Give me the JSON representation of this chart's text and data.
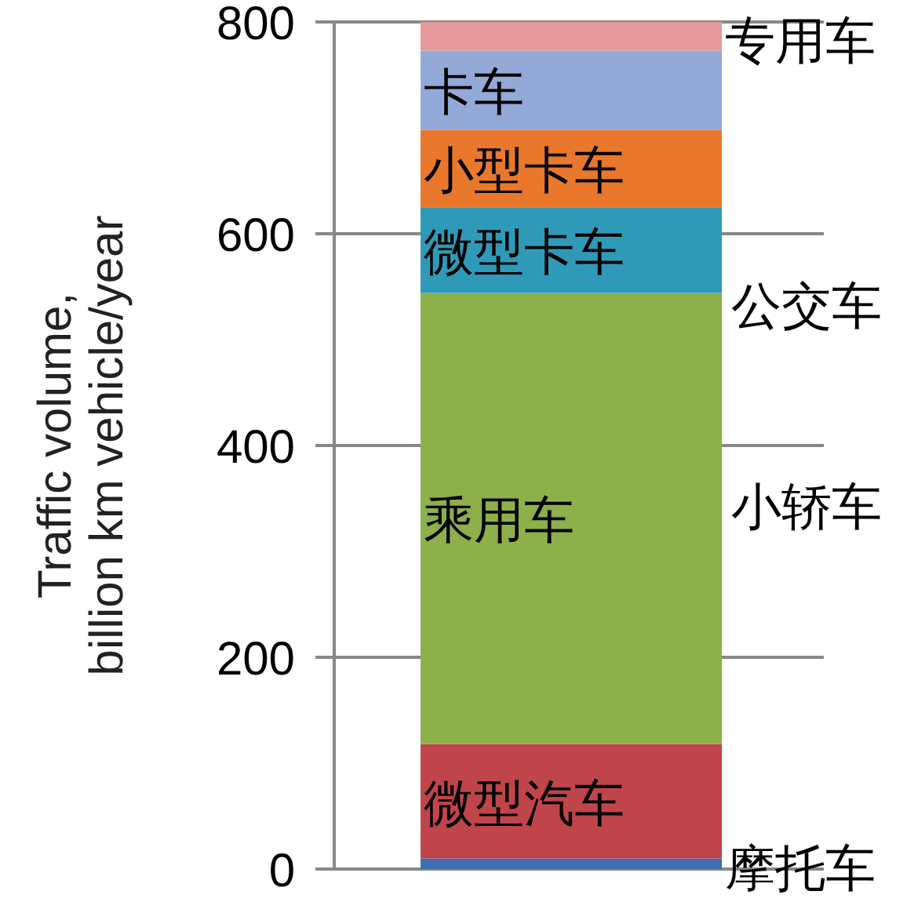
{
  "chart_data": {
    "type": "bar",
    "stacked": true,
    "ylabel": "Traffic volume,\nbillion km vehicle/year",
    "categories": [
      null
    ],
    "ylim": [
      0,
      800
    ],
    "yticks": [
      0,
      200,
      400,
      600,
      800
    ],
    "grid": "y",
    "series": [
      {
        "name": "摩托车",
        "color": "#3f6fae",
        "values": [
          10
        ]
      },
      {
        "name": "微型汽车",
        "color": "#c0454a",
        "values": [
          108
        ]
      },
      {
        "name": "乘用车",
        "color": "#8db04a",
        "values": [
          426
        ]
      },
      {
        "name": "微型卡车",
        "color": "#2f9ab8",
        "values": [
          81
        ]
      },
      {
        "name": "小型卡车",
        "color": "#e9782d",
        "values": [
          73
        ]
      },
      {
        "name": "卡车",
        "color": "#93a9d8",
        "values": [
          75
        ]
      },
      {
        "name": "专用车",
        "color": "#e49a9a",
        "values": [
          27
        ]
      }
    ],
    "annotations": [
      "公交车",
      "小轿车"
    ]
  }
}
